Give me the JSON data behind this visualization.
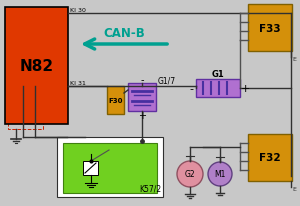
{
  "bg_color": "#c8c8c8",
  "n82_color": "#e03800",
  "n82_label": "N82",
  "f33_color": "#d4900a",
  "f33_label": "F33",
  "f32_color": "#d4900a",
  "f32_label": "F32",
  "f30_color": "#d4900a",
  "f30_label": "F30",
  "g1_color": "#b070d0",
  "g1_label": "G1",
  "g17_color": "#b070d0",
  "g17_label": "G1/7",
  "k572_color": "#70d020",
  "k572_label": "K57/2",
  "k572_outer": "#ffffff",
  "g2_color": "#e090a0",
  "g2_label": "G2",
  "m1_color": "#b080c8",
  "m1_label": "M1",
  "canb_color": "#00a090",
  "canb_label": "CAN-B",
  "ki30_label": "KI 30",
  "ki31_label": "KI 31",
  "line_color": "#303030",
  "wire_color": "#505050",
  "e_label": "E"
}
